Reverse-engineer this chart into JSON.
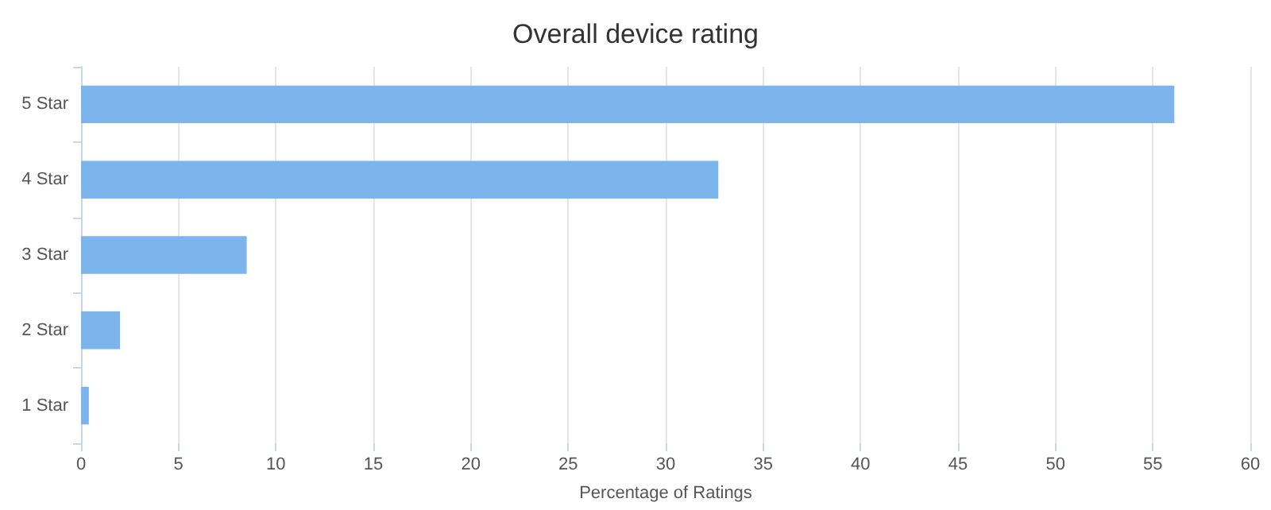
{
  "chart_data": {
    "type": "bar",
    "orientation": "horizontal",
    "title": "Overall device rating",
    "xlabel": "Percentage of Ratings",
    "categories": [
      "5 Star",
      "4 Star",
      "3 Star",
      "2 Star",
      "1 Star"
    ],
    "values": [
      56.1,
      32.7,
      8.5,
      2.0,
      0.4
    ],
    "color": "#7cb5ec",
    "xlim": [
      0,
      60
    ],
    "xticks": [
      0,
      5,
      10,
      15,
      20,
      25,
      30,
      35,
      40,
      45,
      50,
      55,
      60
    ],
    "grid": "x"
  }
}
